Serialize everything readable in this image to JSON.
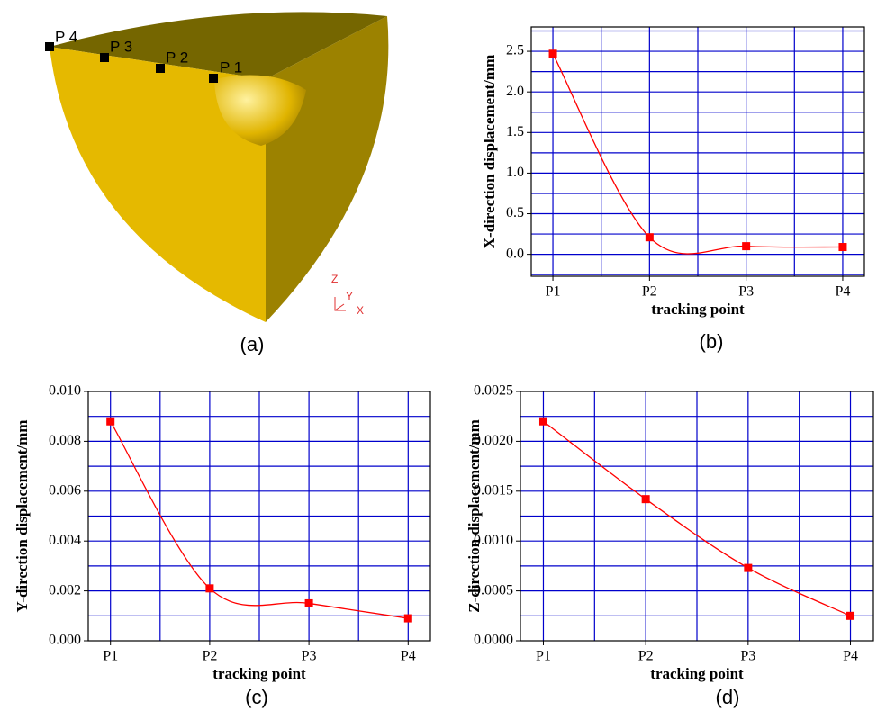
{
  "figure_a": {
    "points": [
      "P 1",
      "P 2",
      "P 3",
      "P 4"
    ],
    "axes": {
      "z": "Z",
      "y": "Y",
      "x": "X"
    },
    "caption": "(a)"
  },
  "chart_data": [
    {
      "type": "line",
      "caption": "(b)",
      "xlabel": "tracking point",
      "ylabel": "X-direction displacement/mm",
      "categories": [
        "P1",
        "P2",
        "P3",
        "P4"
      ],
      "values": [
        2.47,
        0.21,
        0.1,
        0.09
      ],
      "color": "#ff0000",
      "grid_color": "#0000cc",
      "ylim": [
        -0.27,
        2.8
      ],
      "yticks": [
        {
          "value": 0,
          "label": "0.0"
        },
        0.5,
        {
          "value": 1,
          "label": "1.0"
        },
        1.5,
        {
          "value": 2,
          "label": "2.0"
        },
        2.5
      ],
      "ygrid": [
        -0.25,
        0,
        0.25,
        0.5,
        0.75,
        1,
        1.25,
        1.5,
        1.75,
        2,
        2.25,
        2.5,
        2.75
      ]
    },
    {
      "type": "line",
      "caption": "(c)",
      "xlabel": "tracking point",
      "ylabel": "Y-direction displacement/mm",
      "categories": [
        "P1",
        "P2",
        "P3",
        "P4"
      ],
      "values": [
        0.0088,
        0.0021,
        0.0015,
        0.0009
      ],
      "color": "#ff0000",
      "grid_color": "#0000cc",
      "ylim": [
        0,
        0.01
      ],
      "yticks": [
        {
          "value": 0,
          "label": "0.000"
        },
        0.002,
        0.004,
        0.006,
        0.008,
        {
          "value": 0.01,
          "label": "0.010"
        }
      ],
      "ygrid": [
        0.001,
        0.002,
        0.003,
        0.004,
        0.005,
        0.006,
        0.007,
        0.008,
        0.009
      ]
    },
    {
      "type": "line",
      "caption": "(d)",
      "xlabel": "tracking point",
      "ylabel": "Z-direction displacement/mm",
      "categories": [
        "P1",
        "P2",
        "P3",
        "P4"
      ],
      "values": [
        0.0022,
        0.00142,
        0.00073,
        0.00025
      ],
      "color": "#ff0000",
      "grid_color": "#0000cc",
      "ylim": [
        0,
        0.0025
      ],
      "yticks": [
        {
          "value": 0,
          "label": "0.0000"
        },
        0.0005,
        {
          "value": 0.001,
          "label": "0.0010"
        },
        0.0015,
        {
          "value": 0.002,
          "label": "0.0020"
        },
        0.0025
      ],
      "ygrid": [
        0.00025,
        0.0005,
        0.00075,
        0.001,
        0.00125,
        0.0015,
        0.00175,
        0.002,
        0.00225
      ]
    }
  ]
}
